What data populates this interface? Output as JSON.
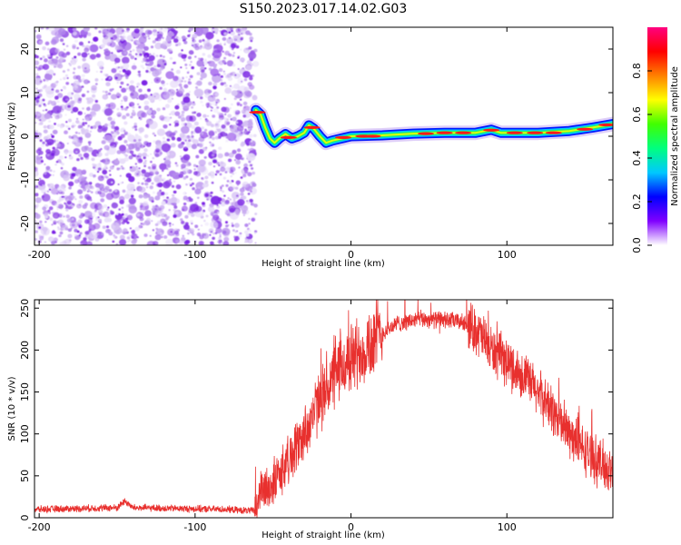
{
  "title": "S150.2023.017.14.02.G03",
  "chart_data": [
    {
      "type": "heatmap",
      "xlabel": "Height of straight line (km)",
      "ylabel": "Frequency (Hz)",
      "xlim": [
        -203,
        168
      ],
      "ylim": [
        -25,
        25
      ],
      "xticks": [
        {
          "label": "-200",
          "value": -200
        },
        {
          "label": "-100",
          "value": -100
        },
        {
          "label": "0",
          "value": 0
        },
        {
          "label": "100",
          "value": 100
        }
      ],
      "yticks": [
        {
          "label": "20",
          "value": 20
        },
        {
          "label": "10",
          "value": 10
        },
        {
          "label": "0",
          "value": 0
        },
        {
          "label": "-10",
          "value": -10
        },
        {
          "label": "-20",
          "value": -20
        }
      ],
      "noise_region_x": [
        -203,
        -61
      ],
      "ridge": [
        {
          "x": -61,
          "f": 6
        },
        {
          "x": -58,
          "f": 5
        },
        {
          "x": -55,
          "f": 2
        },
        {
          "x": -52,
          "f": -0.5
        },
        {
          "x": -49,
          "f": -1.5
        },
        {
          "x": -46,
          "f": -0.5
        },
        {
          "x": -42,
          "f": 0.5
        },
        {
          "x": -38,
          "f": -0.5
        },
        {
          "x": -34,
          "f": 0
        },
        {
          "x": -30,
          "f": 0.8
        },
        {
          "x": -27,
          "f": 2.5
        },
        {
          "x": -24,
          "f": 1.8
        },
        {
          "x": -20,
          "f": 0
        },
        {
          "x": -16,
          "f": -1.5
        },
        {
          "x": -12,
          "f": -1
        },
        {
          "x": -6,
          "f": -0.5
        },
        {
          "x": 0,
          "f": 0
        },
        {
          "x": 20,
          "f": 0.2
        },
        {
          "x": 40,
          "f": 0.6
        },
        {
          "x": 60,
          "f": 0.8
        },
        {
          "x": 80,
          "f": 0.8
        },
        {
          "x": 90,
          "f": 1.5
        },
        {
          "x": 96,
          "f": 0.8
        },
        {
          "x": 120,
          "f": 0.8
        },
        {
          "x": 140,
          "f": 1.2
        },
        {
          "x": 155,
          "f": 2
        },
        {
          "x": 168,
          "f": 2.8
        }
      ],
      "colorbar": {
        "label": "Normalized spectral amplitude",
        "ticks": [
          "0.0",
          "0.2",
          "0.4",
          "0.6",
          "0.8"
        ],
        "tick_values": [
          0,
          0.2,
          0.4,
          0.6,
          0.8
        ],
        "range": [
          0,
          1
        ],
        "colors": [
          "#ffffff",
          "#8000ff",
          "#0000ff",
          "#00c8ff",
          "#00ff80",
          "#40ff00",
          "#ffff00",
          "#ff8000",
          "#ff0000",
          "#ff0080"
        ]
      }
    },
    {
      "type": "line",
      "xlabel": "Height of straight line (km)",
      "ylabel": "SNR (10 * v/v)",
      "xlim": [
        -203,
        168
      ],
      "ylim": [
        0,
        260
      ],
      "xticks": [
        {
          "label": "-200",
          "value": -200
        },
        {
          "label": "-100",
          "value": -100
        },
        {
          "label": "0",
          "value": 0
        },
        {
          "label": "100",
          "value": 100
        }
      ],
      "yticks": [
        {
          "label": "0",
          "value": 0
        },
        {
          "label": "50",
          "value": 50
        },
        {
          "label": "100",
          "value": 100
        },
        {
          "label": "150",
          "value": 150
        },
        {
          "label": "200",
          "value": 200
        },
        {
          "label": "250",
          "value": 250
        }
      ],
      "series_color": "#e8302e",
      "envelope": [
        {
          "x": -203,
          "y": 10
        },
        {
          "x": -150,
          "y": 12
        },
        {
          "x": -145,
          "y": 20
        },
        {
          "x": -140,
          "y": 12
        },
        {
          "x": -80,
          "y": 10
        },
        {
          "x": -62,
          "y": 8
        },
        {
          "x": -58,
          "y": 30
        },
        {
          "x": -50,
          "y": 40
        },
        {
          "x": -40,
          "y": 70
        },
        {
          "x": -30,
          "y": 100
        },
        {
          "x": -20,
          "y": 140
        },
        {
          "x": -10,
          "y": 170
        },
        {
          "x": 0,
          "y": 190
        },
        {
          "x": 10,
          "y": 205
        },
        {
          "x": 20,
          "y": 220
        },
        {
          "x": 30,
          "y": 232
        },
        {
          "x": 45,
          "y": 237
        },
        {
          "x": 60,
          "y": 236
        },
        {
          "x": 70,
          "y": 234
        },
        {
          "x": 80,
          "y": 225
        },
        {
          "x": 90,
          "y": 200
        },
        {
          "x": 100,
          "y": 185
        },
        {
          "x": 110,
          "y": 170
        },
        {
          "x": 120,
          "y": 150
        },
        {
          "x": 130,
          "y": 125
        },
        {
          "x": 140,
          "y": 100
        },
        {
          "x": 150,
          "y": 80
        },
        {
          "x": 160,
          "y": 65
        },
        {
          "x": 168,
          "y": 55
        }
      ]
    }
  ]
}
